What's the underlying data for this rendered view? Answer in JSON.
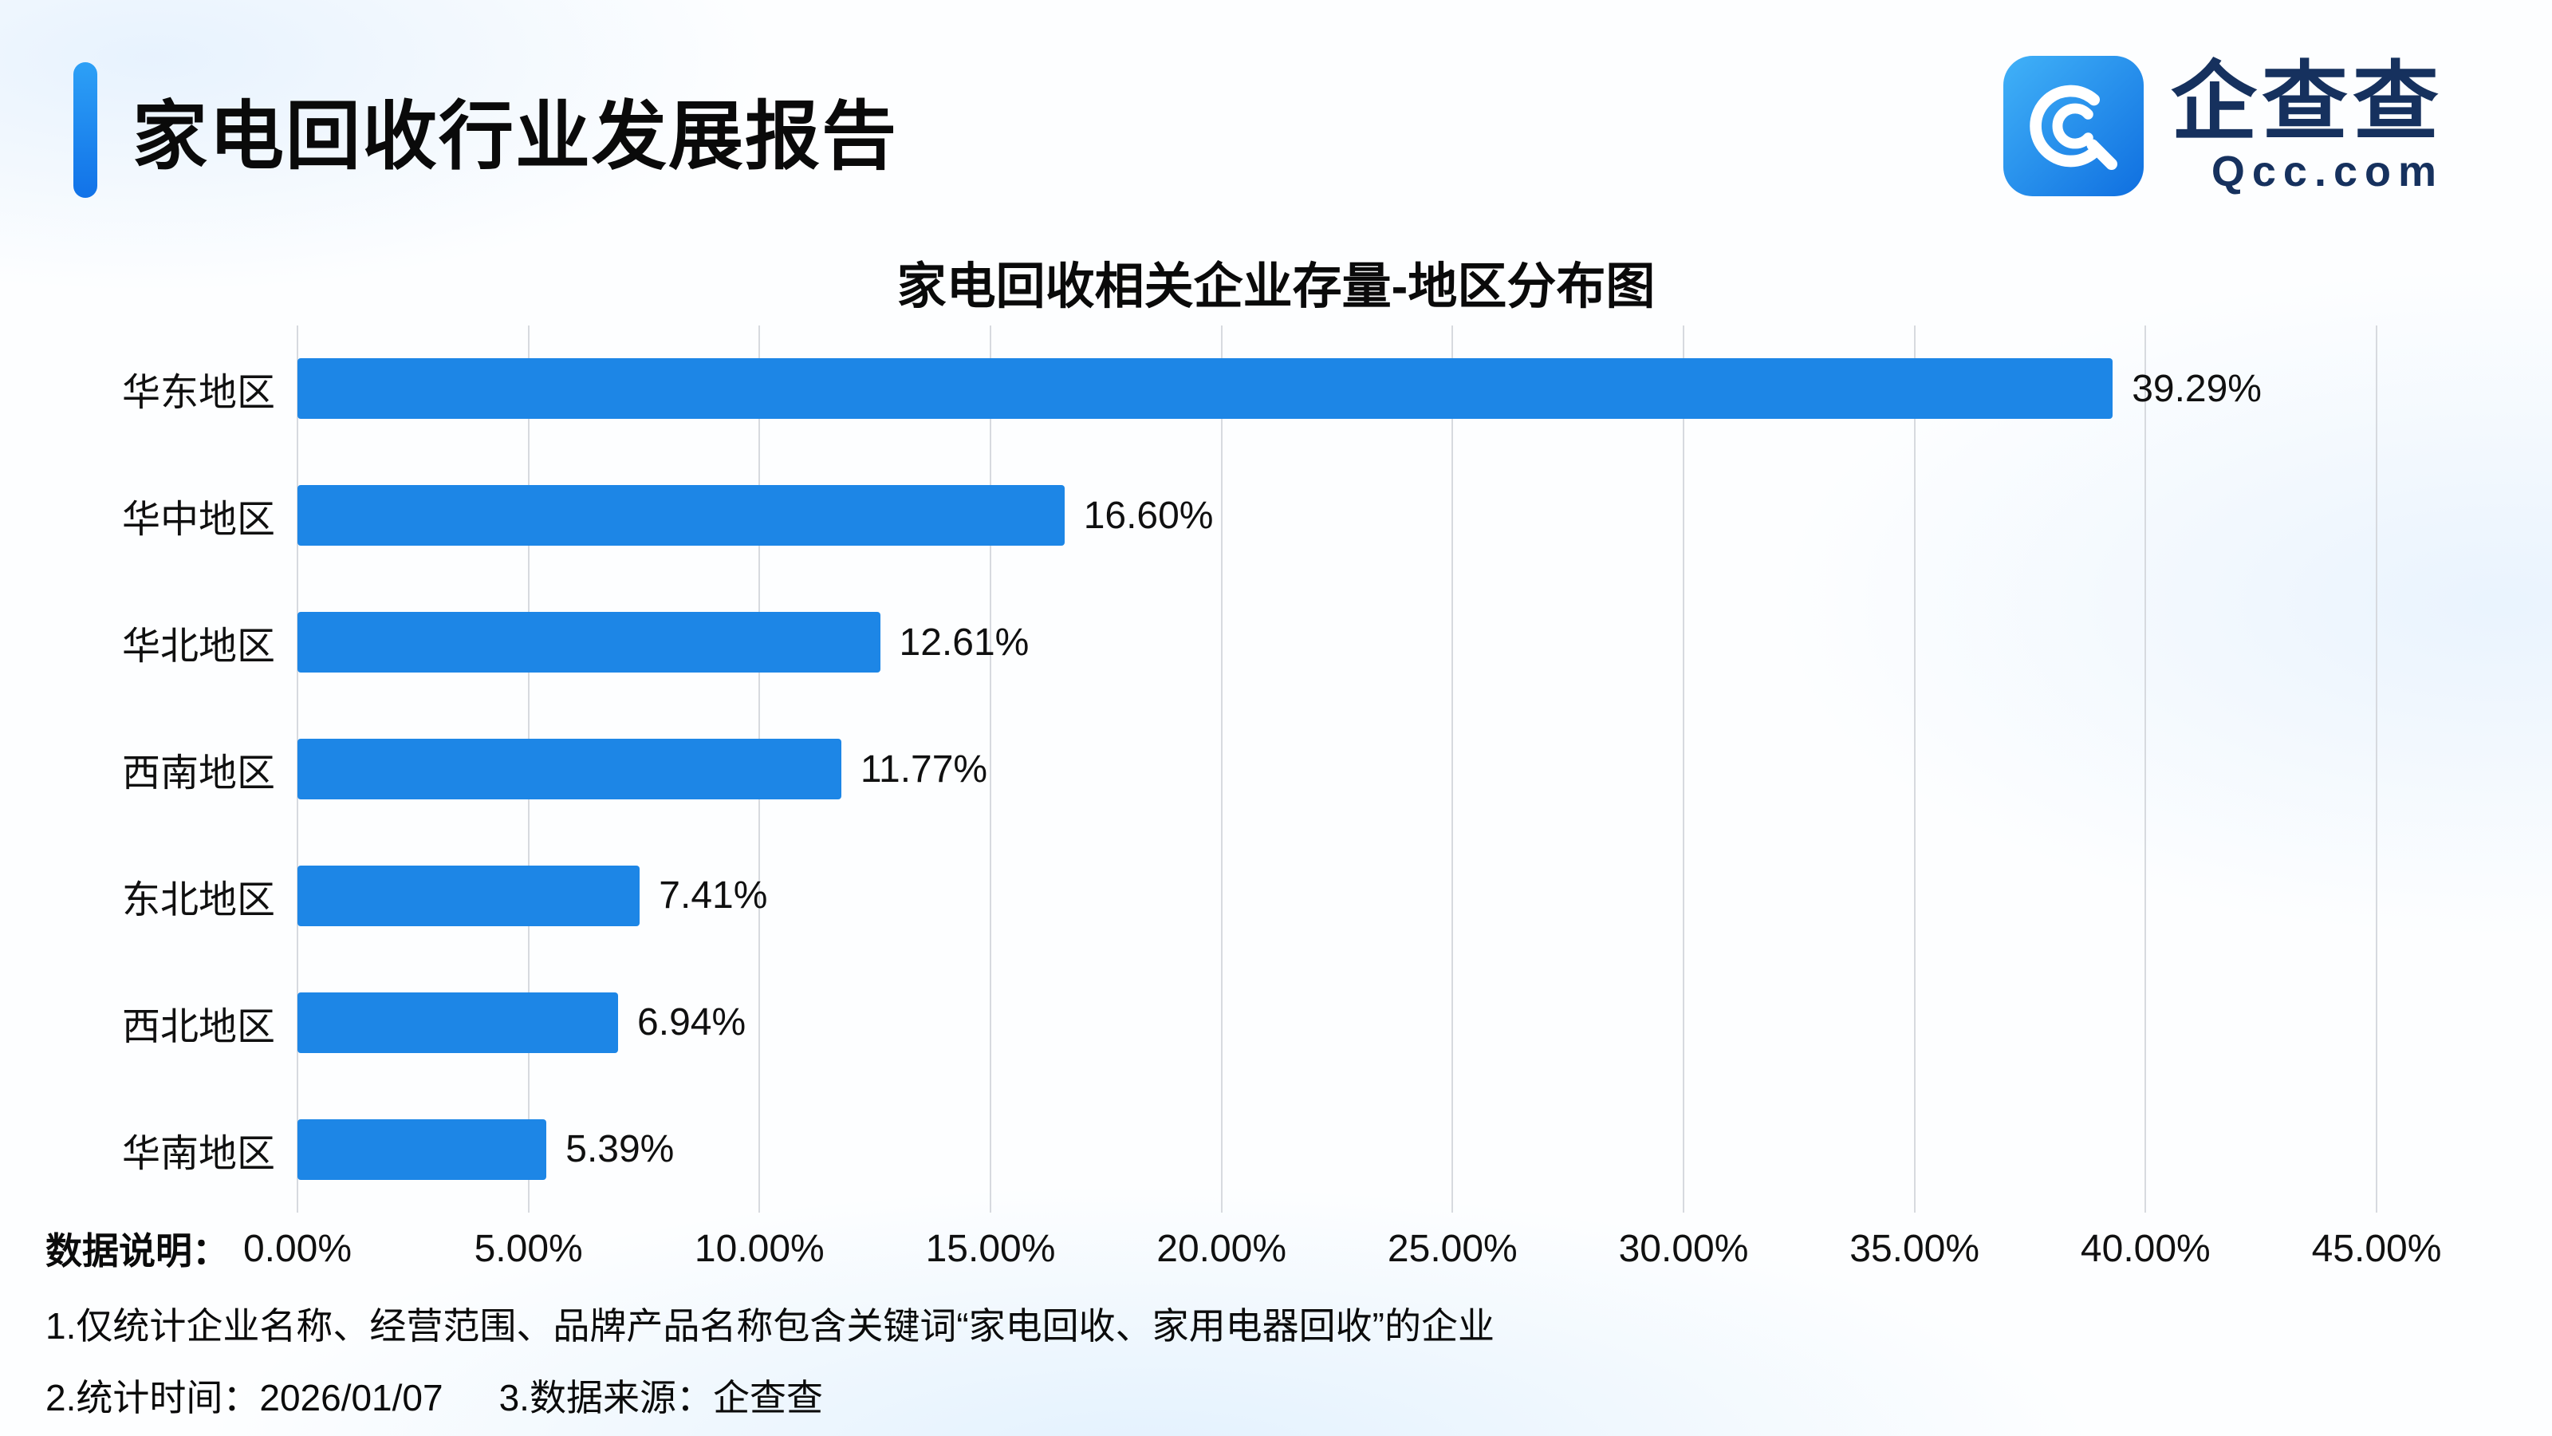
{
  "header": {
    "title": "家电回收行业发展报告",
    "brand": "企查查",
    "brand_domain": "Qcc.com",
    "accent_color": "#1677f0",
    "brand_text_color": "#16315e"
  },
  "chart_data": {
    "type": "bar",
    "orientation": "horizontal",
    "title": "家电回收相关企业存量-地区分布图",
    "categories": [
      "华东地区",
      "华中地区",
      "华北地区",
      "西南地区",
      "东北地区",
      "西北地区",
      "华南地区"
    ],
    "values": [
      39.29,
      16.6,
      12.61,
      11.77,
      7.41,
      6.94,
      5.39
    ],
    "value_labels": [
      "39.29%",
      "16.60%",
      "12.61%",
      "11.77%",
      "7.41%",
      "6.94%",
      "5.39%"
    ],
    "xlim": [
      0,
      45
    ],
    "x_ticks": [
      "0.00%",
      "5.00%",
      "10.00%",
      "15.00%",
      "20.00%",
      "25.00%",
      "30.00%",
      "35.00%",
      "40.00%",
      "45.00%"
    ],
    "xlabel": "",
    "ylabel": "",
    "grid": true,
    "legend": "none",
    "bar_color": "#1d86e6",
    "gridline_color": "#d7dadf"
  },
  "footer": {
    "label": "数据说明：",
    "note1": "1.仅统计企业名称、经营范围、品牌产品名称包含关键词“家电回收、家用电器回收”的企业",
    "note2": "2.统计时间：2026/01/07",
    "note3": "3.数据来源：企查查"
  }
}
